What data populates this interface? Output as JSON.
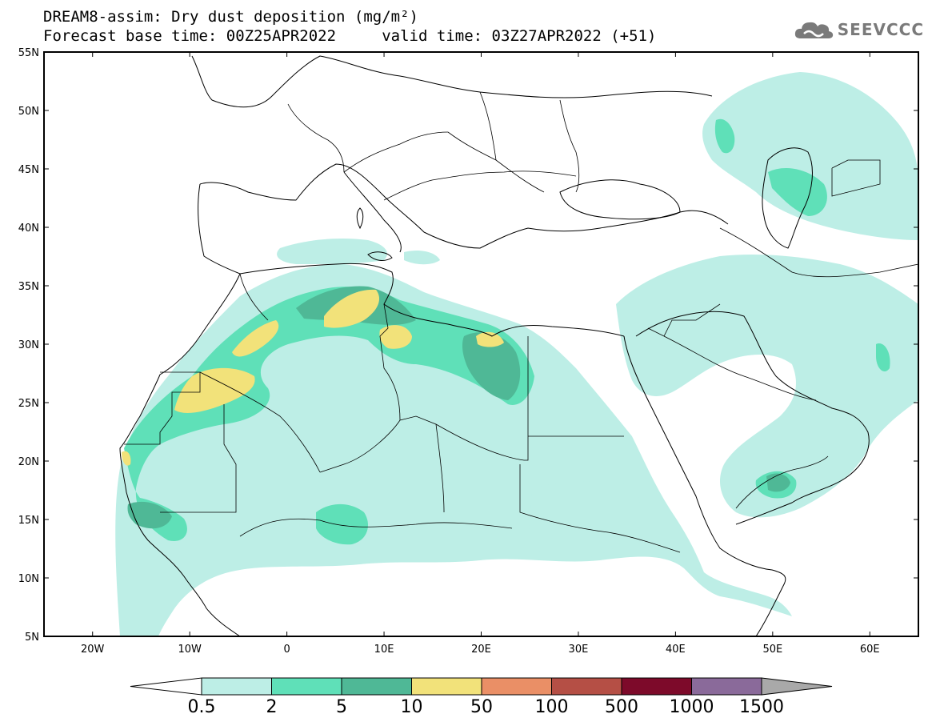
{
  "title": {
    "line1": "DREAM8-assim: Dry dust deposition (mg/m²)",
    "line2": "Forecast base time: 00Z25APR2022     valid time: 03Z27APR2022 (+51)"
  },
  "logo": {
    "text": "SEEVCCC",
    "icon": "cloud-icon"
  },
  "map": {
    "extent": {
      "lon_min": -25,
      "lon_max": 65,
      "lat_min": 5,
      "lat_max": 55
    },
    "lat_labels": [
      "55N",
      "50N",
      "45N",
      "40N",
      "35N",
      "30N",
      "25N",
      "20N",
      "15N",
      "10N",
      "5N"
    ],
    "lon_labels": [
      "20W",
      "10W",
      "0",
      "10E",
      "20E",
      "30E",
      "40E",
      "50E",
      "60E"
    ],
    "colors": {
      "ocean": "#ffffff",
      "coast": "#000000"
    }
  },
  "colorbar": {
    "labels": [
      "0.5",
      "2",
      "5",
      "10",
      "50",
      "100",
      "500",
      "1000",
      "1500"
    ],
    "colors": [
      "#bdeee6",
      "#5fe0b8",
      "#4fb896",
      "#f2e27a",
      "#ea8f66",
      "#b54f45",
      "#7d0a2a",
      "#8a6a9a"
    ],
    "under_color": "#ffffff",
    "over_color": "#a9a9a9"
  }
}
